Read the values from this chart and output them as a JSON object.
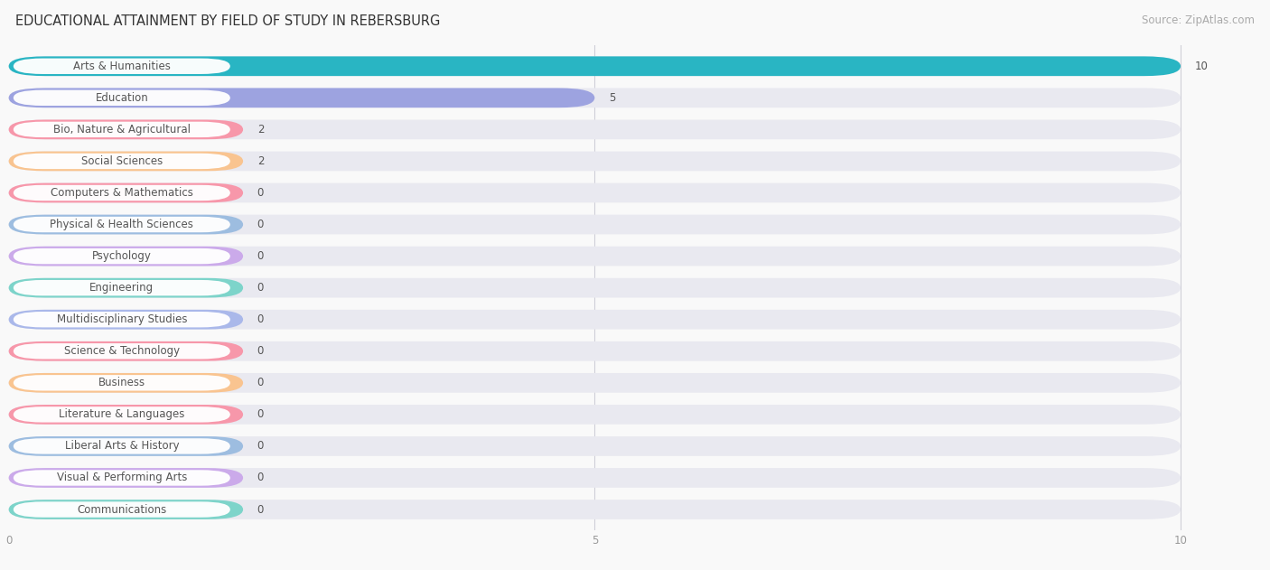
{
  "title": "EDUCATIONAL ATTAINMENT BY FIELD OF STUDY IN REBERSBURG",
  "source": "Source: ZipAtlas.com",
  "categories": [
    "Arts & Humanities",
    "Education",
    "Bio, Nature & Agricultural",
    "Social Sciences",
    "Computers & Mathematics",
    "Physical & Health Sciences",
    "Psychology",
    "Engineering",
    "Multidisciplinary Studies",
    "Science & Technology",
    "Business",
    "Literature & Languages",
    "Liberal Arts & History",
    "Visual & Performing Arts",
    "Communications"
  ],
  "values": [
    10,
    5,
    2,
    2,
    0,
    0,
    0,
    0,
    0,
    0,
    0,
    0,
    0,
    0,
    0
  ],
  "bar_colors": [
    "#29b5c3",
    "#9da3e0",
    "#f797aa",
    "#f9c490",
    "#f797aa",
    "#9dbde0",
    "#cbaaea",
    "#7dd4ca",
    "#aab8ea",
    "#f797aa",
    "#f9c490",
    "#f797aa",
    "#9dbde0",
    "#cbaaea",
    "#7dd4ca"
  ],
  "xlim": [
    0,
    10
  ],
  "background_color": "#f9f9f9",
  "bar_bg_color": "#e9e9f0",
  "title_fontsize": 10.5,
  "source_fontsize": 8.5,
  "label_fontsize": 8.5,
  "value_fontsize": 8.5,
  "grid_color": "#d0d0d8",
  "text_color": "#555555",
  "tick_color": "#999999"
}
